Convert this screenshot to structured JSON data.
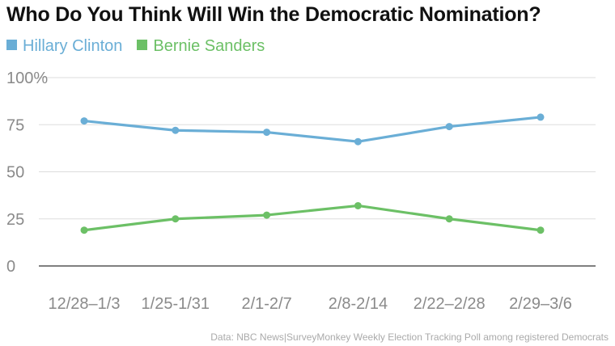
{
  "chart_data": {
    "type": "line",
    "title": "Who Do You Think Will Win the Democratic Nomination?",
    "categories": [
      "12/28–1/3",
      "1/25-1/31",
      "2/1-2/7",
      "2/8-2/14",
      "2/22–2/28",
      "2/29–3/6"
    ],
    "series": [
      {
        "name": "Hillary Clinton",
        "color": "#6aaed6",
        "values": [
          77,
          72,
          71,
          66,
          74,
          79
        ]
      },
      {
        "name": "Bernie Sanders",
        "color": "#6cc066",
        "values": [
          19,
          25,
          27,
          32,
          25,
          19
        ]
      }
    ],
    "yticks": [
      "100%",
      "75",
      "50",
      "25",
      "0"
    ],
    "ylim": [
      0,
      100
    ],
    "grid": true,
    "legend_position": "top-left",
    "source": "Data: NBC News|SurveyMonkey Weekly Election Tracking Poll among registered Democrats"
  }
}
